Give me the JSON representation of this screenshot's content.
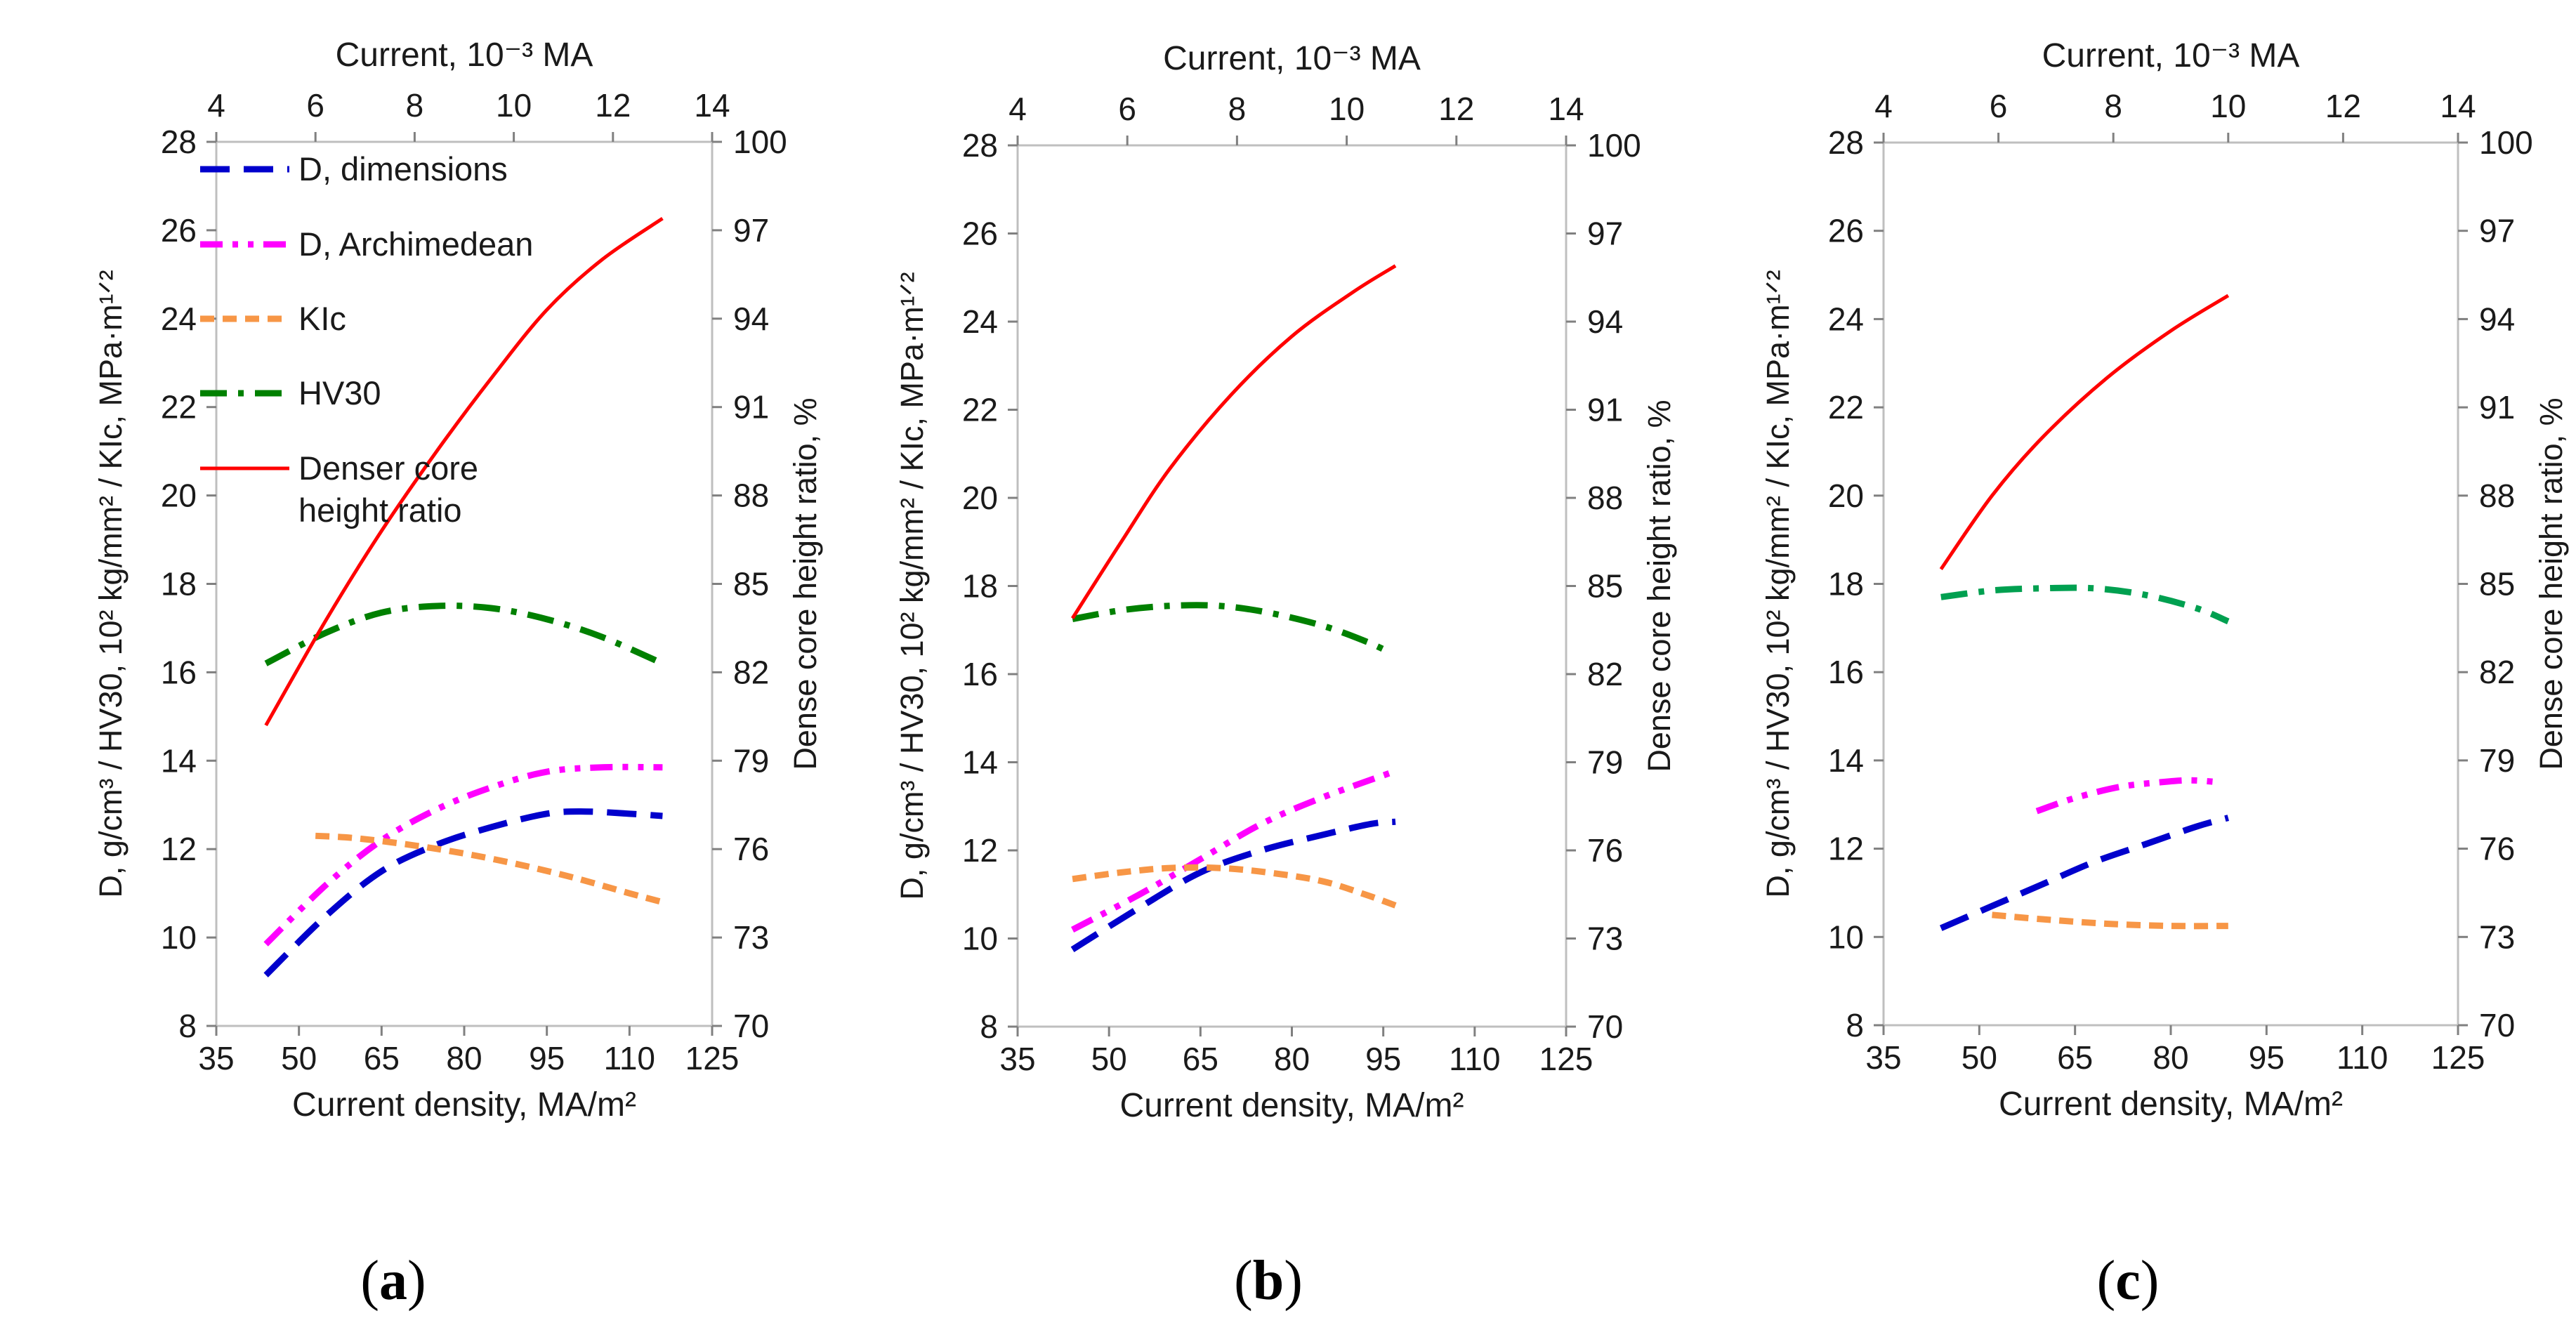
{
  "chart_data": [
    {
      "type": "line",
      "caption_letter": "a",
      "caption": "(a)",
      "xlabel_bottom": "Current density, MA/m²",
      "xlabel_top": "Current, 10⁻³ MA",
      "ylabel_left": "D, g/cm³ / HV30, 10² kg/mm² / KIc, MPa·m¹ᐟ²",
      "ylabel_right": "Dense core height ratio, %",
      "xlim": [
        35,
        125
      ],
      "xticks": [
        "35",
        "50",
        "65",
        "80",
        "95",
        "110",
        "125"
      ],
      "x2lim": [
        4,
        14
      ],
      "x2ticks": [
        "4",
        "6",
        "8",
        "10",
        "12",
        "14"
      ],
      "ylim": [
        8,
        28
      ],
      "yticks": [
        "8",
        "10",
        "12",
        "14",
        "16",
        "18",
        "20",
        "22",
        "24",
        "26",
        "28"
      ],
      "y2lim": [
        70,
        100
      ],
      "y2ticks": [
        "70",
        "73",
        "76",
        "79",
        "82",
        "85",
        "88",
        "91",
        "94",
        "97",
        "100"
      ],
      "legend_position": "top-left",
      "series": [
        {
          "name": "D, dimensions",
          "color": "#0000cc",
          "dash": "long-dash",
          "axis": "left",
          "x": [
            44,
            55,
            65,
            75,
            85,
            95,
            102,
            110,
            116
          ],
          "y": [
            9.15,
            10.5,
            11.5,
            12.1,
            12.5,
            12.8,
            12.85,
            12.8,
            12.75
          ]
        },
        {
          "name": "D, Archimedean",
          "color": "#ff00ff",
          "dash": "dash-dot-dot",
          "axis": "left",
          "x": [
            44,
            55,
            65,
            75,
            85,
            95,
            105,
            116
          ],
          "y": [
            9.85,
            11.2,
            12.2,
            12.9,
            13.4,
            13.75,
            13.85,
            13.85
          ]
        },
        {
          "name": "KIc",
          "color": "#f79646",
          "dash": "short-dash",
          "axis": "left",
          "x": [
            53,
            60,
            70,
            80,
            90,
            100,
            110,
            116
          ],
          "y": [
            12.3,
            12.25,
            12.1,
            11.9,
            11.65,
            11.35,
            11.0,
            10.8
          ]
        },
        {
          "name": "HV30",
          "color": "#008000",
          "dash": "dash-dot",
          "axis": "left",
          "x": [
            44,
            55,
            65,
            75,
            85,
            95,
            105,
            116
          ],
          "y": [
            16.2,
            16.9,
            17.35,
            17.5,
            17.45,
            17.2,
            16.8,
            16.2
          ]
        },
        {
          "name": "Denser core height ratio",
          "color": "#ff0000",
          "dash": "solid",
          "axis": "right",
          "x": [
            44,
            55,
            65,
            75,
            85,
            95,
            105,
            116
          ],
          "y": [
            80.2,
            83.8,
            86.8,
            89.5,
            92.0,
            94.3,
            96.0,
            97.4
          ]
        }
      ]
    },
    {
      "type": "line",
      "caption_letter": "b",
      "caption": "(b)",
      "xlabel_bottom": "Current density, MA/m²",
      "xlabel_top": "Current, 10⁻³ MA",
      "ylabel_left": "D, g/cm³ / HV30, 10² kg/mm² / KIc, MPa·m¹ᐟ²",
      "ylabel_right": "Dense core height ratio, %",
      "xlim": [
        35,
        125
      ],
      "xticks": [
        "35",
        "50",
        "65",
        "80",
        "95",
        "110",
        "125"
      ],
      "x2lim": [
        4,
        14
      ],
      "x2ticks": [
        "4",
        "6",
        "8",
        "10",
        "12",
        "14"
      ],
      "ylim": [
        8,
        28
      ],
      "yticks": [
        "8",
        "10",
        "12",
        "14",
        "16",
        "18",
        "20",
        "22",
        "24",
        "26",
        "28"
      ],
      "y2lim": [
        70,
        100
      ],
      "y2ticks": [
        "70",
        "73",
        "76",
        "79",
        "82",
        "85",
        "88",
        "91",
        "94",
        "97",
        "100"
      ],
      "legend_position": "none",
      "series": [
        {
          "name": "D, dimensions",
          "color": "#0000cc",
          "dash": "long-dash",
          "axis": "left",
          "x": [
            44,
            55,
            65,
            75,
            85,
            93,
            97
          ],
          "y": [
            9.75,
            10.7,
            11.5,
            12.0,
            12.35,
            12.6,
            12.65
          ]
        },
        {
          "name": "D, Archimedean",
          "color": "#ff00ff",
          "dash": "dash-dot-dot",
          "axis": "left",
          "x": [
            44,
            55,
            65,
            75,
            85,
            97
          ],
          "y": [
            10.2,
            11.0,
            11.8,
            12.6,
            13.2,
            13.8
          ]
        },
        {
          "name": "KIc",
          "color": "#f79646",
          "dash": "short-dash",
          "axis": "left",
          "x": [
            44,
            52,
            60,
            68,
            76,
            85,
            92,
            97
          ],
          "y": [
            11.35,
            11.5,
            11.6,
            11.6,
            11.5,
            11.3,
            11.0,
            10.75
          ]
        },
        {
          "name": "HV30",
          "color": "#008000",
          "dash": "dash-dot",
          "axis": "left",
          "x": [
            44,
            52,
            60,
            68,
            76,
            85,
            92,
            96
          ],
          "y": [
            17.25,
            17.45,
            17.55,
            17.55,
            17.4,
            17.1,
            16.75,
            16.5
          ]
        },
        {
          "name": "Denser core height ratio",
          "color": "#ff0000",
          "dash": "solid",
          "axis": "right",
          "x": [
            44,
            52,
            60,
            70,
            80,
            90,
            97
          ],
          "y": [
            83.9,
            86.5,
            89.0,
            91.5,
            93.5,
            95.0,
            95.9
          ]
        }
      ]
    },
    {
      "type": "line",
      "caption_letter": "c",
      "caption": "(c)",
      "xlabel_bottom": "Current density, MA/m²",
      "xlabel_top": "Current, 10⁻³ MA",
      "ylabel_left": "D, g/cm³ / HV30, 10² kg/mm² / KIc, MPa·m¹ᐟ²",
      "ylabel_right": "Dense core height ratio, %",
      "xlim": [
        35,
        125
      ],
      "xticks": [
        "35",
        "50",
        "65",
        "80",
        "95",
        "110",
        "125"
      ],
      "x2lim": [
        4,
        14
      ],
      "x2ticks": [
        "4",
        "6",
        "8",
        "10",
        "12",
        "14"
      ],
      "ylim": [
        8,
        28
      ],
      "yticks": [
        "8",
        "10",
        "12",
        "14",
        "16",
        "18",
        "20",
        "22",
        "24",
        "26",
        "28"
      ],
      "y2lim": [
        70,
        100
      ],
      "y2ticks": [
        "70",
        "73",
        "76",
        "79",
        "82",
        "85",
        "88",
        "91",
        "94",
        "97",
        "100"
      ],
      "legend_position": "none",
      "series": [
        {
          "name": "D, dimensions",
          "color": "#0000cc",
          "dash": "long-dash",
          "axis": "left",
          "x": [
            44,
            52,
            60,
            68,
            76,
            84,
            89
          ],
          "y": [
            10.2,
            10.7,
            11.2,
            11.7,
            12.1,
            12.5,
            12.7
          ]
        },
        {
          "name": "D, Archimedean",
          "color": "#ff00ff",
          "dash": "dash-dot-dot",
          "axis": "left",
          "x": [
            59,
            65,
            72,
            78,
            83,
            88
          ],
          "y": [
            12.85,
            13.15,
            13.4,
            13.5,
            13.55,
            13.5
          ]
        },
        {
          "name": "KIc",
          "color": "#f79646",
          "dash": "short-dash",
          "axis": "left",
          "x": [
            52,
            60,
            70,
            80,
            89
          ],
          "y": [
            10.5,
            10.4,
            10.3,
            10.25,
            10.25
          ]
        },
        {
          "name": "HV30",
          "color": "#00a050",
          "dash": "dash-dot",
          "axis": "left",
          "x": [
            44,
            52,
            60,
            68,
            76,
            84,
            89
          ],
          "y": [
            17.7,
            17.85,
            17.9,
            17.9,
            17.75,
            17.45,
            17.15
          ]
        },
        {
          "name": "Denser core height ratio",
          "color": "#ff0000",
          "dash": "solid",
          "axis": "right",
          "x": [
            44,
            52,
            60,
            70,
            80,
            89
          ],
          "y": [
            85.5,
            88.0,
            90.0,
            92.0,
            93.6,
            94.8
          ]
        }
      ]
    }
  ]
}
